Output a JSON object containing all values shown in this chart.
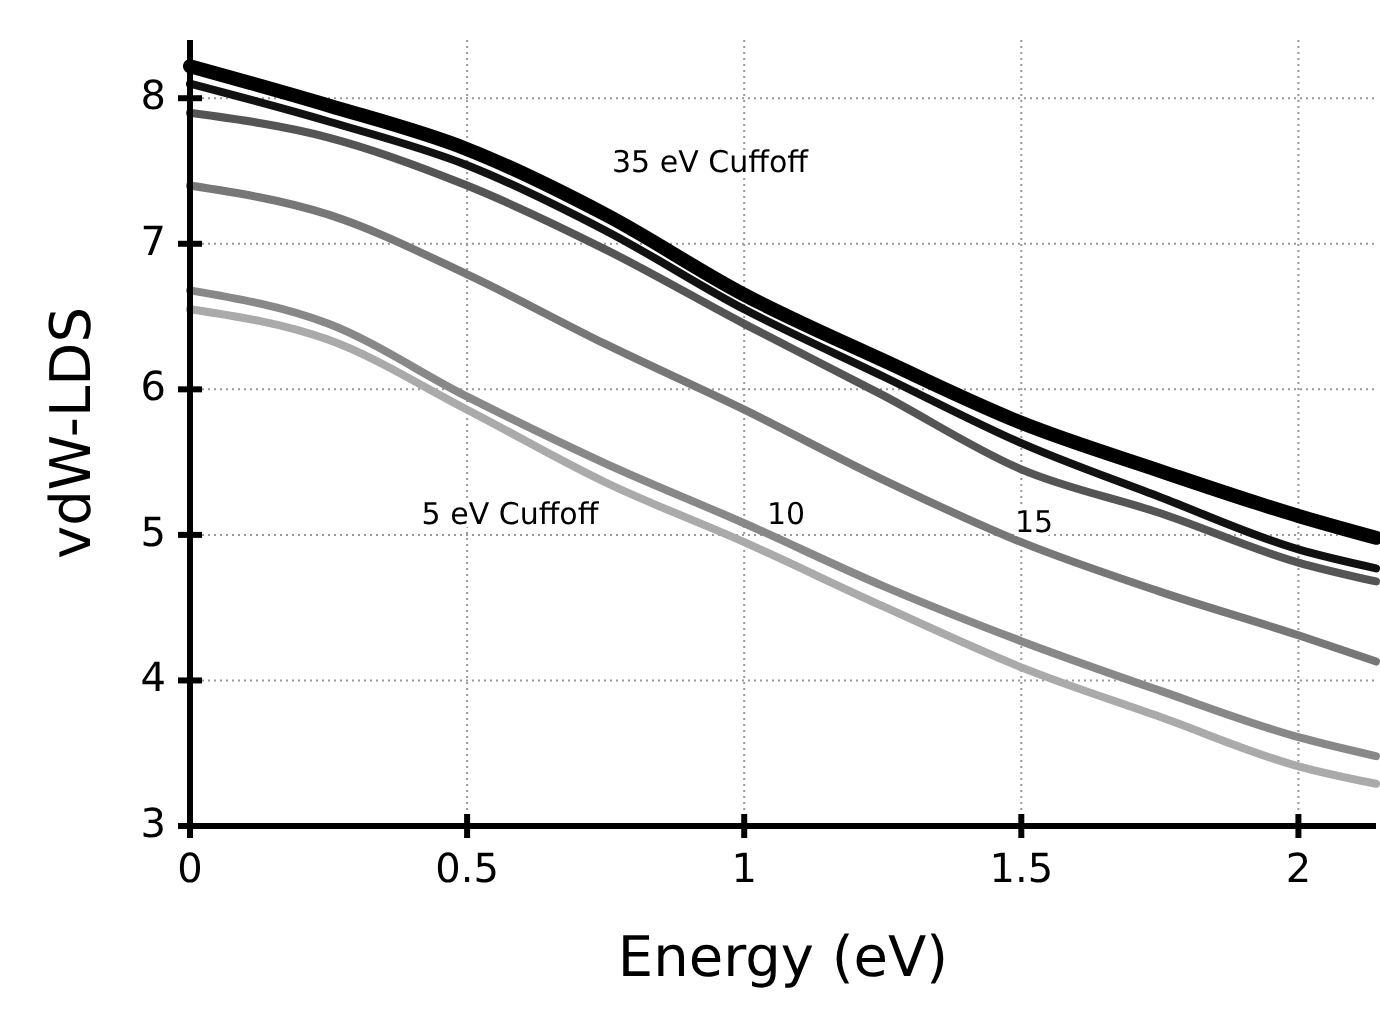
{
  "chart_data": {
    "type": "line",
    "xlabel": "Energy (eV)",
    "ylabel": "vdW-LDS",
    "x": [
      0,
      0.25,
      0.5,
      0.75,
      1,
      1.25,
      1.5,
      1.75,
      2,
      2.14
    ],
    "series": [
      {
        "color": "#000000",
        "values": [
          8.22,
          7.95,
          7.65,
          7.2,
          6.65,
          6.2,
          5.77,
          5.44,
          5.13,
          4.98
        ]
      },
      {
        "color": "#111111",
        "values": [
          8.1,
          7.84,
          7.54,
          7.09,
          6.55,
          6.09,
          5.63,
          5.26,
          4.9,
          4.77
        ]
      },
      {
        "color": "#555555",
        "values": [
          7.9,
          7.73,
          7.4,
          6.96,
          6.45,
          5.96,
          5.45,
          5.15,
          4.81,
          4.68
        ]
      },
      {
        "color": "#777777",
        "values": [
          7.4,
          7.2,
          6.79,
          6.31,
          5.86,
          5.38,
          4.95,
          4.61,
          4.31,
          4.13
        ]
      },
      {
        "color": "#888888",
        "values": [
          6.68,
          6.45,
          5.95,
          5.49,
          5.08,
          4.65,
          4.27,
          3.93,
          3.61,
          3.48
        ]
      },
      {
        "color": "#aaaaaa",
        "values": [
          6.55,
          6.34,
          5.86,
          5.36,
          4.95,
          4.51,
          4.09,
          3.75,
          3.41,
          3.29
        ]
      }
    ],
    "xlim": [
      0,
      2.14
    ],
    "ylim": [
      3,
      8.4
    ],
    "xticks": [
      0,
      0.5,
      1,
      1.5,
      2
    ],
    "yticks": [
      3,
      4,
      5,
      6,
      7,
      8
    ],
    "grid": true,
    "marker": "none",
    "line_style": "solid",
    "annotations": [
      "35 eV Cuffoff",
      "5 eV Cuffoff",
      "10",
      "15"
    ]
  }
}
